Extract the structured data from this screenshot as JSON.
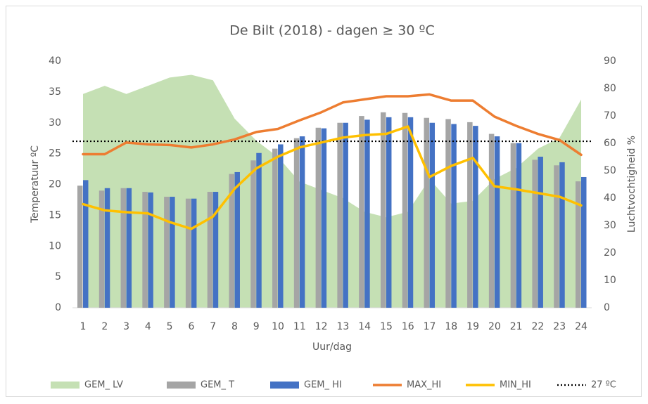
{
  "chart_data": {
    "type": "combo",
    "title": "De Bilt (2018) - dagen ≥ 30 ºC",
    "x_label": "Uur/dag",
    "y_label": "Temperatuur ºC",
    "y2_label": "Luchtvochtigheid %",
    "categories": [
      "1",
      "2",
      "3",
      "4",
      "5",
      "6",
      "7",
      "8",
      "9",
      "10",
      "11",
      "12",
      "13",
      "14",
      "15",
      "16",
      "17",
      "18",
      "19",
      "20",
      "21",
      "22",
      "23",
      "24"
    ],
    "ylim": [
      0,
      40
    ],
    "yticks": [
      0,
      5,
      10,
      15,
      20,
      25,
      30,
      35,
      40
    ],
    "y2lim": [
      0,
      90
    ],
    "y2ticks": [
      0,
      10,
      20,
      30,
      40,
      50,
      60,
      70,
      80,
      90
    ],
    "legend": "bottom",
    "series": [
      {
        "name": "GEM_ LV",
        "type": "area",
        "axis": "y2",
        "color": "#c5e0b4",
        "values": [
          78,
          81,
          78,
          81,
          84,
          85,
          83,
          69,
          61,
          55,
          46,
          43,
          40,
          35,
          33,
          35,
          47,
          38,
          39,
          47,
          51,
          58,
          62,
          76
        ]
      },
      {
        "name": "GEM_ T",
        "type": "bar",
        "color": "#a5a5a5",
        "values": [
          19.8,
          19.0,
          19.4,
          18.8,
          18.0,
          17.7,
          18.8,
          21.7,
          23.9,
          25.8,
          27.5,
          29.2,
          30.0,
          31.1,
          31.7,
          31.6,
          30.8,
          30.6,
          30.1,
          28.2,
          26.7,
          24.0,
          23.1,
          20.5
        ]
      },
      {
        "name": "GEM_ HI",
        "type": "bar",
        "color": "#4472c4",
        "values": [
          20.7,
          19.4,
          19.4,
          18.7,
          18.0,
          17.7,
          18.8,
          22.0,
          25.1,
          26.5,
          27.8,
          29.1,
          30.0,
          30.5,
          30.9,
          30.9,
          30.0,
          29.8,
          29.5,
          27.8,
          26.7,
          24.5,
          23.6,
          21.2
        ]
      },
      {
        "name": "MAX_HI",
        "type": "line",
        "color": "#ed7d31",
        "values": [
          24.9,
          24.9,
          26.8,
          26.5,
          26.4,
          26.0,
          26.5,
          27.3,
          28.5,
          29.0,
          30.4,
          31.7,
          33.3,
          33.8,
          34.3,
          34.3,
          34.6,
          33.6,
          33.6,
          31.0,
          29.5,
          28.2,
          27.2,
          24.8
        ]
      },
      {
        "name": "MIN_HI",
        "type": "line",
        "color": "#ffc000",
        "values": [
          16.8,
          15.8,
          15.5,
          15.3,
          13.9,
          12.8,
          14.8,
          19.3,
          22.6,
          24.5,
          26.0,
          26.8,
          27.6,
          28.0,
          28.2,
          29.4,
          21.2,
          23.0,
          24.3,
          19.7,
          19.2,
          18.6,
          18.0,
          16.6
        ]
      }
    ],
    "reference_line": {
      "name": "27 ºC",
      "value": 27,
      "color": "#000000"
    }
  }
}
